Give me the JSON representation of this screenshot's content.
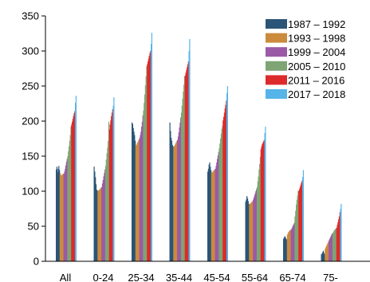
{
  "chart_data": {
    "type": "bar",
    "title": "",
    "xlabel": "",
    "ylabel": "",
    "ylim": [
      0,
      350
    ],
    "yticks": [
      0,
      50,
      100,
      150,
      200,
      250,
      300,
      350
    ],
    "grid": false,
    "legend_position": "top-right",
    "categories": [
      "All",
      "0-24",
      "25-34",
      "35-44",
      "45-54",
      "55-64",
      "65-74",
      "75-"
    ],
    "series": [
      {
        "name": "1987 – 1992",
        "color": "#2a5577",
        "values": [
          [
            131,
            135,
            127,
            132,
            136,
            130
          ],
          [
            135,
            128,
            120,
            110,
            102,
            101
          ],
          [
            198,
            196,
            190,
            185,
            180,
            172
          ],
          [
            198,
            186,
            176,
            172,
            166,
            164
          ],
          [
            128,
            132,
            138,
            141,
            135,
            130
          ],
          [
            85,
            88,
            93,
            90,
            86,
            82
          ],
          [
            32,
            34,
            36,
            34,
            32,
            31
          ],
          [
            10,
            11,
            13,
            15,
            12,
            10
          ]
        ]
      },
      {
        "name": "1993 – 1998",
        "color": "#cc8a3c",
        "values": [
          [
            126,
            124,
            122,
            123,
            124,
            125
          ],
          [
            100,
            101,
            102,
            103,
            104,
            105
          ],
          [
            165,
            166,
            168,
            170,
            172,
            174
          ],
          [
            163,
            164,
            166,
            168,
            170,
            172
          ],
          [
            126,
            127,
            128,
            129,
            130,
            131
          ],
          [
            81,
            82,
            83,
            84,
            85,
            86
          ],
          [
            38,
            40,
            42,
            43,
            44,
            45
          ],
          [
            18,
            20,
            22,
            24,
            26,
            28
          ]
        ]
      },
      {
        "name": "1999 – 2004",
        "color": "#9b5aa6",
        "values": [
          [
            125,
            128,
            132,
            137,
            142,
            146
          ],
          [
            106,
            111,
            116,
            121,
            126,
            131
          ],
          [
            176,
            180,
            185,
            192,
            199,
            208
          ],
          [
            173,
            178,
            184,
            191,
            198,
            205
          ],
          [
            132,
            136,
            141,
            146,
            151,
            156
          ],
          [
            88,
            91,
            94,
            97,
            100,
            103
          ],
          [
            45,
            47,
            49,
            51,
            53,
            55
          ],
          [
            30,
            32,
            34,
            36,
            38,
            40
          ]
        ]
      },
      {
        "name": "2005 – 2010",
        "color": "#7ea573",
        "values": [
          [
            150,
            157,
            164,
            172,
            180,
            192
          ],
          [
            136,
            145,
            154,
            162,
            172,
            199
          ],
          [
            215,
            226,
            238,
            251,
            264,
            278
          ],
          [
            212,
            222,
            232,
            242,
            252,
            264
          ],
          [
            161,
            168,
            175,
            182,
            189,
            193
          ],
          [
            106,
            114,
            121,
            131,
            139,
            149
          ],
          [
            64,
            72,
            81,
            88,
            94,
            101
          ],
          [
            40,
            42,
            44,
            45,
            46,
            47
          ]
        ]
      },
      {
        "name": "2011 – 2016",
        "color": "#dd2b2b",
        "values": [
          [
            195,
            199,
            203,
            207,
            211,
            214
          ],
          [
            188,
            195,
            201,
            207,
            212,
            217
          ],
          [
            281,
            285,
            289,
            293,
            297,
            300
          ],
          [
            265,
            269,
            273,
            277,
            281,
            285
          ],
          [
            201,
            206,
            212,
            218,
            223,
            229
          ],
          [
            160,
            164,
            167,
            169,
            171,
            173
          ],
          [
            100,
            103,
            106,
            109,
            112,
            115
          ],
          [
            48,
            52,
            56,
            60,
            64,
            70
          ]
        ]
      },
      {
        "name": "2017 – 2018",
        "color": "#56b4e9",
        "values": [
          [
            226,
            236
          ],
          [
            222,
            234
          ],
          [
            310,
            326
          ],
          [
            300,
            317
          ],
          [
            240,
            250
          ],
          [
            183,
            192
          ],
          [
            120,
            130
          ],
          [
            75,
            82
          ]
        ]
      }
    ]
  }
}
